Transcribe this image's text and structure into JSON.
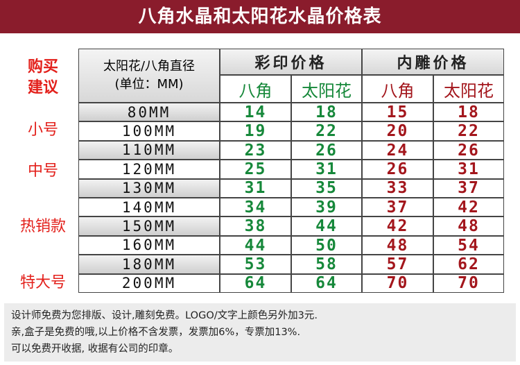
{
  "header": {
    "title": "八角水晶和太阳花水晶价格表"
  },
  "advice": {
    "heading": [
      "购买",
      "建议"
    ],
    "labels": [
      "小号",
      "中号",
      "热销款",
      "特大号"
    ]
  },
  "table": {
    "size_label": [
      "太阳花/八角直径",
      "(单位：MM)"
    ],
    "groups": [
      "彩印价格",
      "内雕价格"
    ],
    "subheaders": [
      "八角",
      "太阳花",
      "八角",
      "太阳花"
    ],
    "rows": [
      [
        "80MM",
        14,
        18,
        15,
        18
      ],
      [
        "100MM",
        19,
        22,
        20,
        22
      ],
      [
        "110MM",
        23,
        26,
        24,
        26
      ],
      [
        "120MM",
        25,
        31,
        26,
        31
      ],
      [
        "130MM",
        31,
        35,
        33,
        37
      ],
      [
        "140MM",
        34,
        39,
        37,
        42
      ],
      [
        "150MM",
        38,
        44,
        42,
        48
      ],
      [
        "160MM",
        44,
        50,
        48,
        54
      ],
      [
        "180MM",
        53,
        58,
        57,
        62
      ],
      [
        "200MM",
        64,
        64,
        70,
        70
      ]
    ]
  },
  "notes": [
    "设计师免费为您排版、设计,雕刻免费。LOGO/文字上颜色另外加3元.",
    "亲,盒子是免费的哦,以上价格不含发票，发票加6%，专票加13%.",
    "可以免费开收据, 收据有公司的印章。"
  ]
}
